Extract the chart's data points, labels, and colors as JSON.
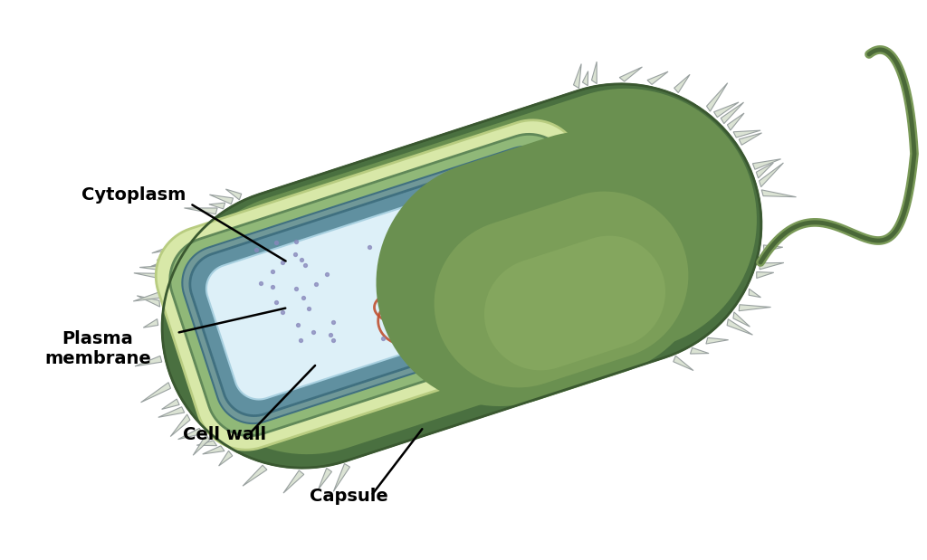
{
  "bg": "#ffffff",
  "colors": {
    "outer_body_dark": "#4a7040",
    "outer_body_mid": "#6a9050",
    "outer_body_light": "#8aaa60",
    "outer_body_highlight": "#a0c070",
    "capsule_fill": "#d8e8a8",
    "capsule_edge": "#b8cc80",
    "cell_wall_fill": "#90b878",
    "cell_wall_edge": "#608858",
    "plasma_fill": "#6090a0",
    "plasma_edge": "#407080",
    "cytoplasm_fill": "#ddf0f8",
    "cytoplasm_edge": "#a8d0e0",
    "nucleoid": "#c05030",
    "nucleoid2": "#a03828",
    "ribosome": "#8888bb",
    "pili_fill": "#d8e0d0",
    "pili_edge": "#909898",
    "flagellum": "#7a9a58",
    "flagellum_dark": "#4a6838",
    "shading_dark": "#3a5830",
    "teal_membrane": "#709898"
  },
  "labels": {
    "capsule": "Capsule",
    "cell_wall": "Cell wall",
    "plasma_membrane": "Plasma\nmembrane",
    "cytoplasm": "Cytoplasm"
  }
}
